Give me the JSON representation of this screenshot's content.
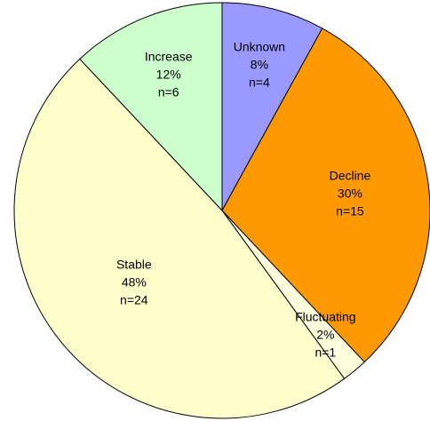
{
  "chart_data": {
    "type": "pie",
    "categories": [
      "Unknown",
      "Decline",
      "Fluctuating",
      "Stable",
      "Increase"
    ],
    "values": [
      8,
      30,
      2,
      48,
      12
    ],
    "value_labels": [
      "8%",
      "30%",
      "2%",
      "48%",
      "12%"
    ],
    "counts": [
      4,
      15,
      1,
      24,
      6
    ],
    "count_labels": [
      "n=4",
      "n=15",
      "n=1",
      "n=24",
      "n=6"
    ],
    "colors": [
      "#9999ff",
      "#ff9900",
      "#ffffdd",
      "#ffffcc",
      "#ccffcc"
    ]
  }
}
